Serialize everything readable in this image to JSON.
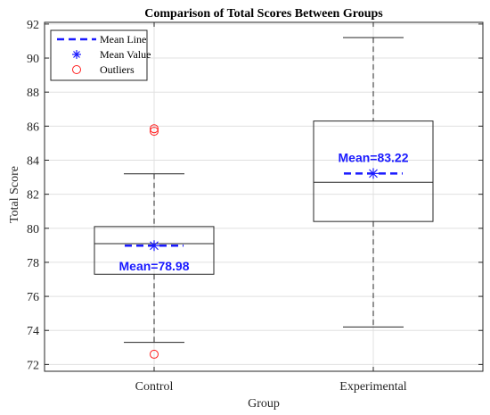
{
  "chart_data": {
    "type": "box",
    "title": "Comparison of Total Scores Between Groups",
    "xlabel": "Group",
    "ylabel": "Total Score",
    "categories": [
      "Control",
      "Experimental"
    ],
    "ylim": [
      71.6,
      92.1
    ],
    "yticks": [
      72,
      74,
      76,
      78,
      80,
      82,
      84,
      86,
      88,
      90,
      92
    ],
    "grid": true,
    "legend": {
      "position": "top-left",
      "entries": [
        "Mean Line",
        "Mean Value",
        "Outliers"
      ]
    },
    "boxes": [
      {
        "name": "Control",
        "whisker_low": 73.3,
        "q1": 77.3,
        "median": 79.1,
        "q3": 80.1,
        "whisker_high": 83.2,
        "mean": 78.98,
        "mean_label": "Mean=78.98",
        "outliers": [
          85.7,
          85.85,
          72.6
        ]
      },
      {
        "name": "Experimental",
        "whisker_low": 74.2,
        "q1": 80.4,
        "median": 82.7,
        "q3": 86.3,
        "whisker_high": 91.2,
        "mean": 83.22,
        "mean_label": "Mean=83.22",
        "outliers": []
      }
    ],
    "colors": {
      "box": "#262626",
      "whisker": "#262626",
      "mean": "#1a1aff",
      "outlier": "#ff2020",
      "grid": "#e0e0e0"
    }
  }
}
